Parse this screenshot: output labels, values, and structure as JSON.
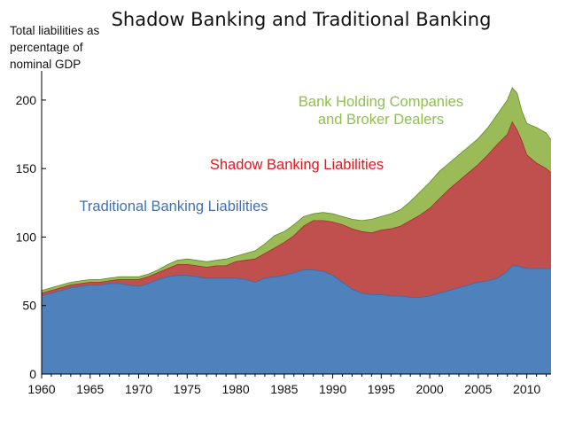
{
  "chart_data": {
    "type": "area",
    "title": "Shadow Banking and Traditional Banking",
    "ylabel_lines": [
      "Total liabilities as",
      "percentage of",
      "nominal GDP"
    ],
    "xlabel": "",
    "ylim": [
      0,
      220
    ],
    "xlim": [
      1960,
      2012.5
    ],
    "y_ticks": [
      0,
      50,
      100,
      150,
      200
    ],
    "x_ticks": [
      1960,
      1965,
      1970,
      1975,
      1980,
      1985,
      1990,
      1995,
      2000,
      2005,
      2010
    ],
    "grid": false,
    "legend": "inline annotations",
    "stacking": "cumulative",
    "x": [
      1960,
      1961,
      1962,
      1963,
      1964,
      1965,
      1966,
      1967,
      1968,
      1969,
      1970,
      1971,
      1972,
      1973,
      1974,
      1975,
      1976,
      1977,
      1978,
      1979,
      1980,
      1981,
      1982,
      1983,
      1984,
      1985,
      1986,
      1987,
      1988,
      1989,
      1990,
      1991,
      1992,
      1993,
      1994,
      1995,
      1996,
      1997,
      1998,
      1999,
      2000,
      2001,
      2002,
      2003,
      2004,
      2005,
      2006,
      2007,
      2008,
      2008.5,
      2009,
      2009.5,
      2010,
      2011,
      2012,
      2012.5
    ],
    "series": [
      {
        "name": "Traditional Banking Liabilities",
        "color": "#4f81bd",
        "values": [
          57,
          59,
          61,
          63,
          64,
          65,
          65,
          66,
          66,
          65,
          64,
          66,
          69,
          71,
          72,
          72,
          71,
          70,
          70,
          70,
          70,
          69,
          67,
          70,
          71,
          72,
          74,
          76,
          76,
          75,
          72,
          67,
          62,
          59,
          58,
          58,
          57,
          57,
          56,
          56,
          57,
          59,
          61,
          63,
          65,
          67,
          68,
          70,
          75,
          79,
          79,
          78,
          77,
          77,
          77,
          77
        ]
      },
      {
        "name": "Shadow Banking Liabilities",
        "color": "#c0504d",
        "values": [
          59,
          61,
          63,
          65,
          66,
          67,
          67,
          68,
          69,
          69,
          69,
          71,
          74,
          77,
          80,
          80,
          79,
          78,
          79,
          79,
          82,
          83,
          84,
          88,
          92,
          96,
          101,
          108,
          112,
          112,
          111,
          109,
          106,
          104,
          103,
          105,
          106,
          108,
          112,
          116,
          121,
          128,
          135,
          141,
          147,
          153,
          160,
          168,
          175,
          184,
          178,
          170,
          160,
          154,
          150,
          147
        ]
      },
      {
        "name": "Bank Holding Companies and Broker Dealers",
        "color": "#9bbb59",
        "values": [
          61,
          63,
          65,
          67,
          68,
          69,
          69,
          70,
          71,
          71,
          71,
          73,
          76,
          80,
          83,
          84,
          83,
          82,
          83,
          84,
          86,
          88,
          90,
          95,
          101,
          104,
          109,
          115,
          117,
          118,
          117,
          115,
          113,
          112,
          113,
          115,
          117,
          120,
          126,
          133,
          140,
          148,
          154,
          160,
          166,
          172,
          180,
          190,
          200,
          209,
          205,
          192,
          183,
          180,
          176,
          171
        ]
      }
    ],
    "annotations": [
      {
        "lines": [
          "Bank Holding Companies",
          "and Broker Dealers"
        ],
        "color": "#8fc04a"
      },
      {
        "lines": [
          "Shadow Banking Liabilities"
        ],
        "color": "#e8141b"
      },
      {
        "lines": [
          "Traditional Banking Liabilities"
        ],
        "color": "#3f72b4"
      }
    ]
  }
}
